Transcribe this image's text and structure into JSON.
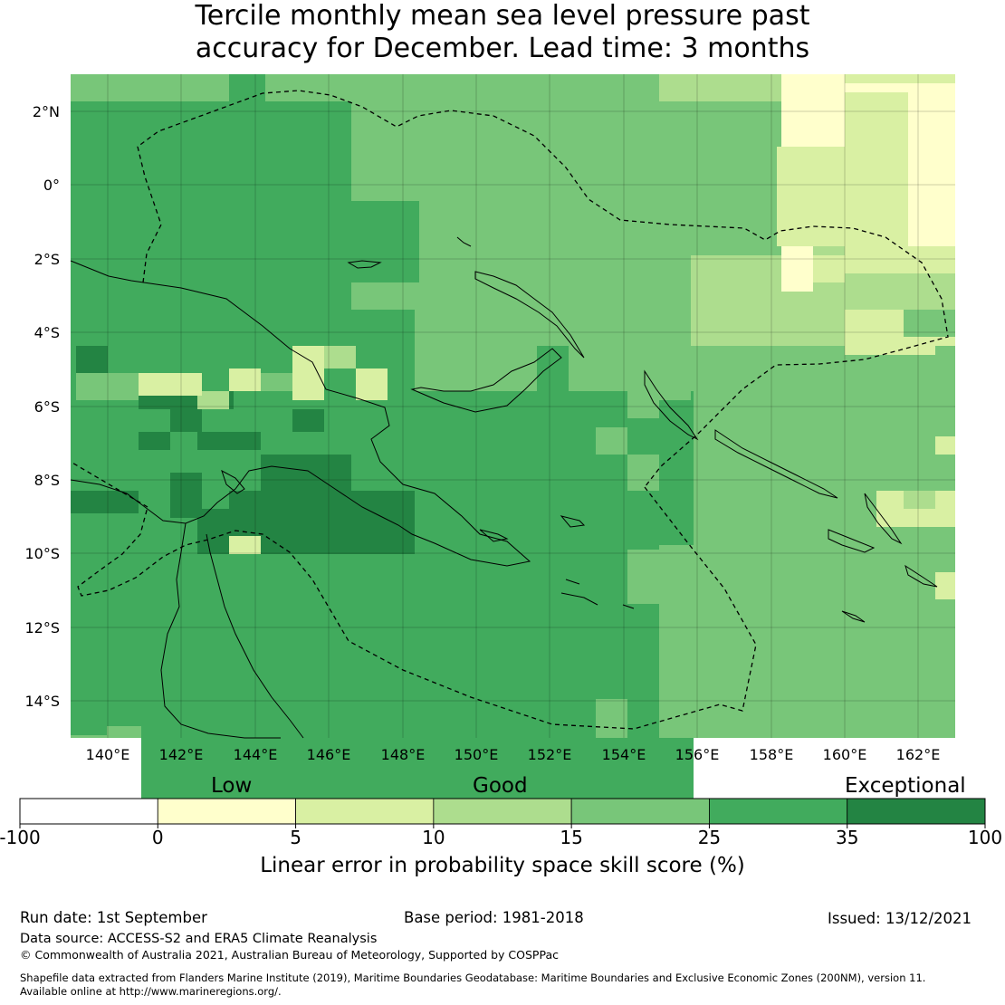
{
  "title": {
    "line1": "Tercile monthly mean sea level pressure past",
    "line2": "accuracy for December. Lead time: 3 months"
  },
  "map": {
    "lat_labels": [
      "2°N",
      "0°",
      "2°S",
      "4°S",
      "6°S",
      "8°S",
      "10°S",
      "12°S",
      "14°S"
    ],
    "lon_labels": [
      "140°E",
      "142°E",
      "144°E",
      "146°E",
      "148°E",
      "150°E",
      "152°E",
      "154°E",
      "156°E",
      "158°E",
      "160°E",
      "162°E"
    ]
  },
  "colorbar": {
    "categories": [
      "Low",
      "Good",
      "Exceptional"
    ],
    "ticks": [
      "-100",
      "0",
      "5",
      "10",
      "15",
      "25",
      "35",
      "100"
    ],
    "colors": [
      "#ffffff",
      "#ffffcc",
      "#d9f0a3",
      "#addd8e",
      "#78c679",
      "#41ab5d",
      "#238443"
    ],
    "label": "Linear error in probability space skill score (%)"
  },
  "footer": {
    "run_date": "Run date: 1st September",
    "base_period": "Base period: 1981-2018",
    "issued": "Issued: 13/12/2021",
    "data_source": "Data source: ACCESS-S2 and ERA5 Climate Reanalysis",
    "copyright": "© Commonwealth of Australia 2021, Australian Bureau of Meteorology, Supported by COSPPac",
    "shapefile_line1": "Shapefile data extracted from Flanders Marine Institute (2019), Maritime Boundaries Geodatabase: Maritime Boundaries and Exclusive Economic Zones (200NM), version 11.",
    "shapefile_line2": "Available online at http://www.marineregions.org/."
  }
}
